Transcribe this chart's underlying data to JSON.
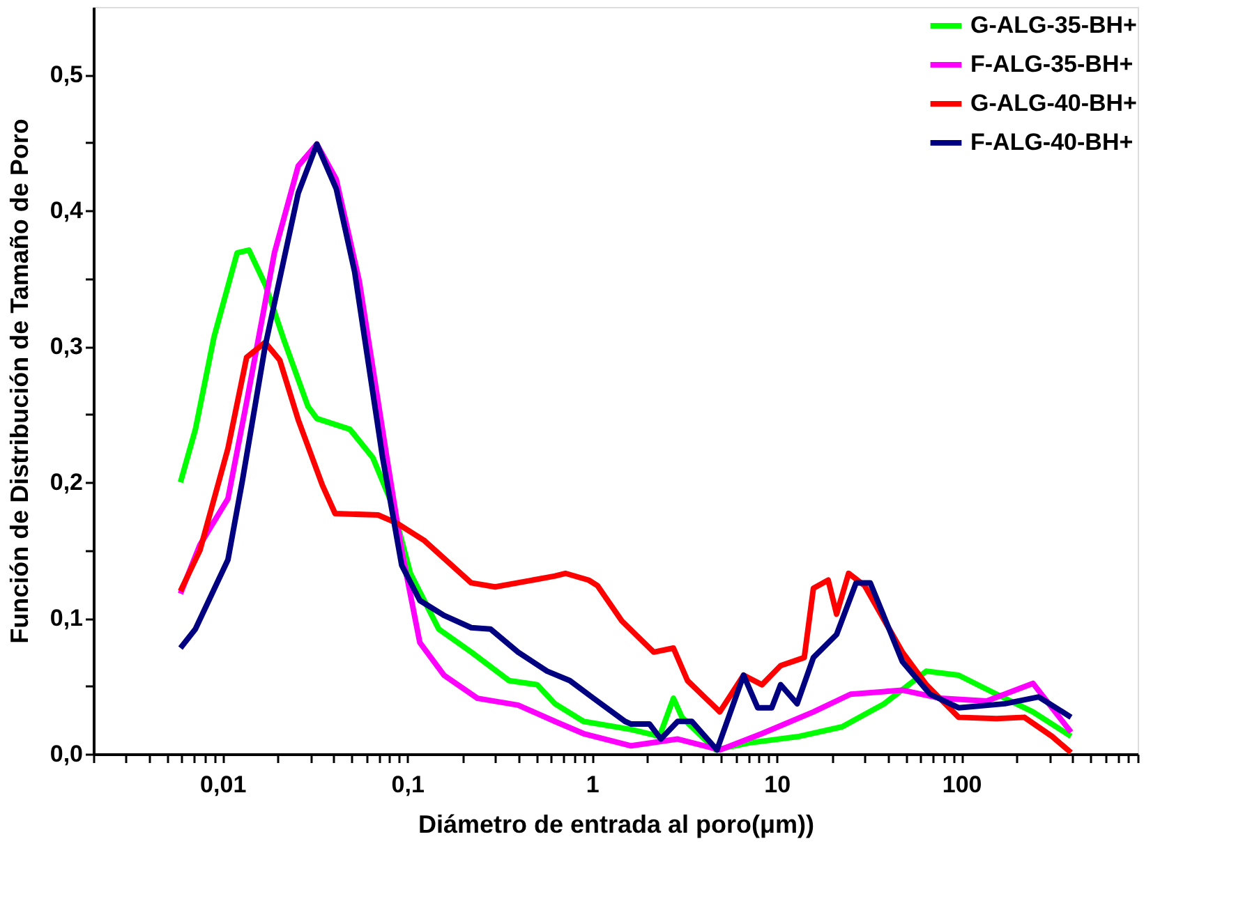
{
  "chart_data": {
    "type": "line",
    "xlabel": "Diámetro de entrada al poro(μm))",
    "ylabel": "Función de Distribución de Tamaño de Poro",
    "log": "x",
    "grid": false,
    "legend": "top right",
    "line_style": "solid",
    "marker": "none",
    "xlim": [
      0.002,
      900
    ],
    "ylim": [
      0,
      0.55
    ],
    "xticks": [
      {
        "value": 0.002,
        "label": null
      },
      {
        "value": 0.003,
        "label": null
      },
      {
        "value": 0.004,
        "label": null
      },
      {
        "value": 0.005,
        "label": null
      },
      {
        "value": 0.006,
        "label": null
      },
      {
        "value": 0.007,
        "label": null
      },
      {
        "value": 0.008,
        "label": null
      },
      {
        "value": 0.009,
        "label": null
      },
      {
        "value": 0.01,
        "label": "0,01"
      },
      {
        "value": 0.02,
        "label": null
      },
      {
        "value": 0.03,
        "label": null
      },
      {
        "value": 0.04,
        "label": null
      },
      {
        "value": 0.05,
        "label": null
      },
      {
        "value": 0.06,
        "label": null
      },
      {
        "value": 0.07,
        "label": null
      },
      {
        "value": 0.08,
        "label": null
      },
      {
        "value": 0.09,
        "label": null
      },
      {
        "value": 0.1,
        "label": "0,1"
      },
      {
        "value": 0.2,
        "label": null
      },
      {
        "value": 0.3,
        "label": null
      },
      {
        "value": 0.4,
        "label": null
      },
      {
        "value": 0.5,
        "label": null
      },
      {
        "value": 0.6,
        "label": null
      },
      {
        "value": 0.7,
        "label": null
      },
      {
        "value": 0.8,
        "label": null
      },
      {
        "value": 0.9,
        "label": null
      },
      1,
      {
        "value": 2,
        "label": null
      },
      {
        "value": 3,
        "label": null
      },
      {
        "value": 4,
        "label": null
      },
      {
        "value": 5,
        "label": null
      },
      {
        "value": 6,
        "label": null
      },
      {
        "value": 7,
        "label": null
      },
      {
        "value": 8,
        "label": null
      },
      {
        "value": 9,
        "label": null
      },
      10,
      {
        "value": 20,
        "label": null
      },
      {
        "value": 30,
        "label": null
      },
      {
        "value": 40,
        "label": null
      },
      {
        "value": 50,
        "label": null
      },
      {
        "value": 60,
        "label": null
      },
      {
        "value": 70,
        "label": null
      },
      {
        "value": 80,
        "label": null
      },
      {
        "value": 90,
        "label": null
      },
      100,
      {
        "value": 200,
        "label": null
      },
      {
        "value": 300,
        "label": null
      },
      {
        "value": 400,
        "label": null
      },
      {
        "value": 500,
        "label": null
      },
      {
        "value": 600,
        "label": null
      },
      {
        "value": 700,
        "label": null
      },
      {
        "value": 800,
        "label": null
      },
      {
        "value": 900,
        "label": null
      }
    ],
    "yticks": [
      {
        "value": 0,
        "label": "0,0"
      },
      {
        "value": 0.05,
        "label": null
      },
      {
        "value": 0.1,
        "label": "0,1"
      },
      {
        "value": 0.15,
        "label": null
      },
      {
        "value": 0.2,
        "label": "0,2"
      },
      {
        "value": 0.25,
        "label": null
      },
      {
        "value": 0.3,
        "label": "0,3"
      },
      {
        "value": 0.35,
        "label": null
      },
      {
        "value": 0.4,
        "label": "0,4"
      },
      {
        "value": 0.45,
        "label": null
      },
      {
        "value": 0.5,
        "label": "0,5"
      }
    ],
    "series": [
      {
        "name": "G-ALG-35-BH+",
        "color": "#00ff00",
        "x": [
          0.00592,
          0.00713,
          0.00899,
          0.012,
          0.0139,
          0.0171,
          0.0216,
          0.029,
          0.0324,
          0.049,
          0.0652,
          0.0828,
          0.104,
          0.148,
          0.222,
          0.356,
          0.505,
          0.63,
          0.9,
          1.63,
          2.32,
          2.76,
          3.07,
          4.67,
          6.98,
          13.3,
          22.6,
          38.2,
          64.6,
          96.6,
          155,
          244,
          392
        ],
        "values": [
          0.2,
          0.239,
          0.307,
          0.369,
          0.371,
          0.345,
          0.304,
          0.256,
          0.247,
          0.239,
          0.218,
          0.184,
          0.133,
          0.092,
          0.075,
          0.054,
          0.051,
          0.037,
          0.024,
          0.018,
          0.013,
          0.041,
          0.027,
          0.003,
          0.008,
          0.013,
          0.02,
          0.037,
          0.061,
          0.058,
          0.044,
          0.031,
          0.013
        ]
      },
      {
        "name": "F-ALG-35-BH+",
        "color": "#ff00ff",
        "x": [
          0.00592,
          0.00755,
          0.0107,
          0.0135,
          0.0191,
          0.0257,
          0.0324,
          0.0413,
          0.055,
          0.0776,
          0.0933,
          0.117,
          0.158,
          0.24,
          0.398,
          0.63,
          0.9,
          1.63,
          2.91,
          4.92,
          8.32,
          15.8,
          25.1,
          47.9,
          76.9,
          137,
          244,
          392
        ],
        "values": [
          0.118,
          0.154,
          0.188,
          0.259,
          0.369,
          0.433,
          0.449,
          0.423,
          0.348,
          0.218,
          0.15,
          0.082,
          0.058,
          0.041,
          0.036,
          0.024,
          0.015,
          0.006,
          0.011,
          0.003,
          0.015,
          0.031,
          0.044,
          0.047,
          0.041,
          0.039,
          0.052,
          0.016
        ]
      },
      {
        "name": "G-ALG-40-BH+",
        "color": "#ff0000",
        "x": [
          0.00592,
          0.00755,
          0.0107,
          0.0135,
          0.017,
          0.0204,
          0.0257,
          0.0347,
          0.0407,
          0.0695,
          0.0877,
          0.124,
          0.222,
          0.299,
          0.63,
          0.718,
          0.96,
          1.07,
          1.45,
          2.16,
          2.76,
          3.29,
          4.67,
          4.92,
          6.62,
          8.32,
          10.5,
          14.1,
          15.8,
          19.0,
          21.1,
          24.5,
          29.9,
          47.9,
          64.6,
          96.6,
          155,
          219,
          309,
          392
        ],
        "values": [
          0.12,
          0.15,
          0.225,
          0.292,
          0.303,
          0.29,
          0.246,
          0.198,
          0.177,
          0.176,
          0.17,
          0.157,
          0.126,
          0.123,
          0.131,
          0.133,
          0.128,
          0.124,
          0.098,
          0.075,
          0.078,
          0.054,
          0.034,
          0.031,
          0.058,
          0.051,
          0.065,
          0.071,
          0.122,
          0.128,
          0.103,
          0.133,
          0.124,
          0.075,
          0.051,
          0.027,
          0.026,
          0.027,
          0.013,
          0.001
        ]
      },
      {
        "name": "F-ALG-40-BH+",
        "color": "#000080",
        "x": [
          0.00592,
          0.00713,
          0.0107,
          0.0128,
          0.017,
          0.0257,
          0.0324,
          0.0413,
          0.0519,
          0.0736,
          0.0933,
          0.117,
          0.158,
          0.222,
          0.282,
          0.398,
          0.571,
          0.759,
          1.02,
          1.51,
          1.63,
          2.05,
          2.36,
          2.91,
          3.47,
          4.75,
          6.62,
          7.89,
          9.4,
          10.5,
          12.9,
          15.8,
          21.1,
          26.9,
          32.1,
          47.9,
          67.6,
          96.6,
          172,
          262,
          392
        ],
        "values": [
          0.078,
          0.092,
          0.143,
          0.201,
          0.3,
          0.413,
          0.449,
          0.416,
          0.355,
          0.218,
          0.139,
          0.113,
          0.102,
          0.093,
          0.092,
          0.075,
          0.061,
          0.054,
          0.041,
          0.024,
          0.022,
          0.022,
          0.011,
          0.024,
          0.024,
          0.003,
          0.058,
          0.034,
          0.034,
          0.051,
          0.037,
          0.071,
          0.088,
          0.126,
          0.126,
          0.068,
          0.044,
          0.034,
          0.037,
          0.042,
          0.027
        ]
      }
    ]
  }
}
